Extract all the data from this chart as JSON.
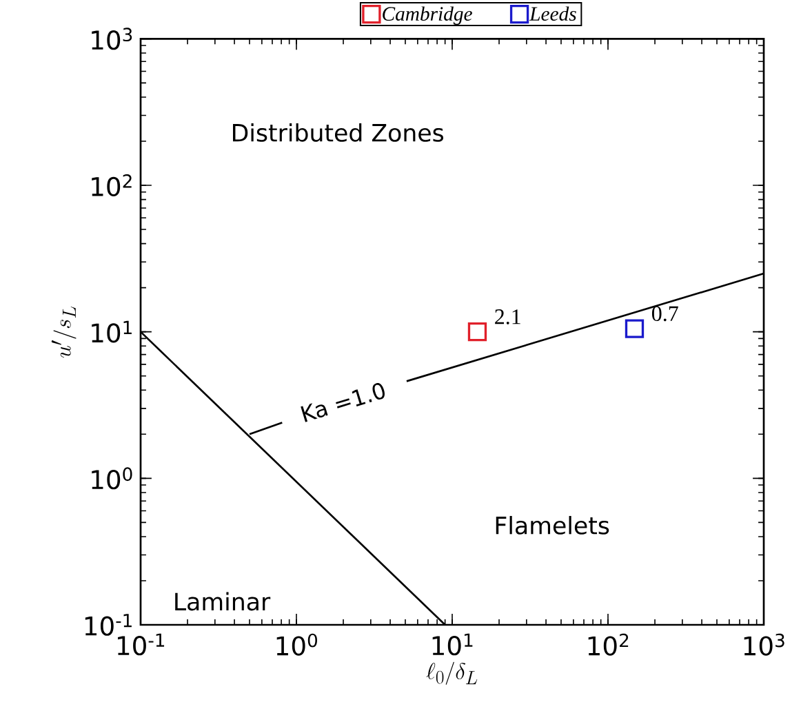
{
  "chart_data": {
    "type": "scatter",
    "xlabel": "\\ell_0/\\delta_L",
    "ylabel": "u'/s_L",
    "log": "xy",
    "legend": "top",
    "grid": false,
    "xlim": [
      0.1,
      1000
    ],
    "ylim": [
      0.1,
      1000
    ],
    "xticks": [
      {
        "value": 0.1,
        "label": "10$^{-1}$"
      },
      {
        "value": 1,
        "label": "10$^{0}$"
      },
      {
        "value": 10,
        "label": "10$^{1}$"
      },
      {
        "value": 100,
        "label": "10$^{2}$"
      },
      {
        "value": 1000,
        "label": "10$^{3}$"
      }
    ],
    "yticks": [
      {
        "value": 0.1,
        "label": "10$^{-1}$"
      },
      {
        "value": 1,
        "label": "10$^{0}$"
      },
      {
        "value": 10,
        "label": "10$^{1}$"
      },
      {
        "value": 100,
        "label": "10$^{2}$"
      },
      {
        "value": 1000,
        "label": "10$^{3}$"
      }
    ],
    "series": [
      {
        "type": "line",
        "color": "#000000",
        "marker": "none",
        "x": [
          0.1,
          9
        ],
        "values": [
          10,
          0.1
        ]
      },
      {
        "type": "line",
        "color": "#000000",
        "marker": "none",
        "x": [
          0.5,
          0.81,
          null,
          5.1,
          1000
        ],
        "values": [
          2.0,
          2.4,
          null,
          4.6,
          25
        ]
      },
      {
        "name": "Cambridge",
        "color": "#e0202a",
        "marker": "square",
        "x": [
          14.5
        ],
        "values": [
          10
        ]
      },
      {
        "name": "Leeds",
        "color": "#1a1acc",
        "marker": "square",
        "x": [
          148
        ],
        "values": [
          10.5
        ]
      }
    ],
    "annotations": [
      {
        "text": "2.1",
        "x": 14.5,
        "y": 10
      },
      {
        "text": "0.7",
        "x": 148,
        "y": 10.5
      },
      "Ka =1.0",
      "Distributed Zones",
      "Laminar",
      "Flamelets"
    ]
  }
}
